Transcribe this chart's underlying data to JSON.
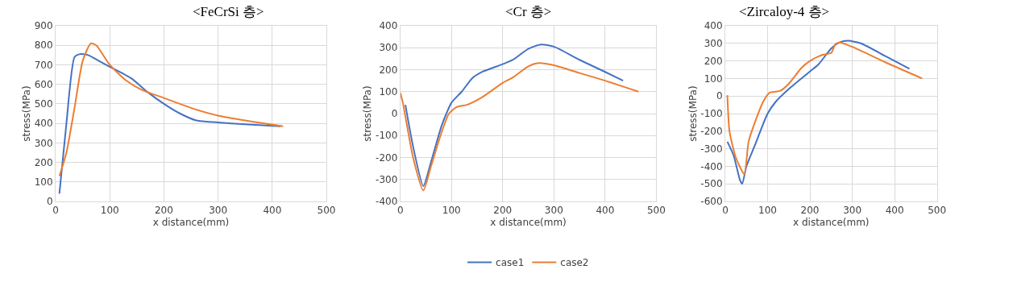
{
  "chart_data": [
    {
      "type": "line",
      "title": "<FeCrSi 층>",
      "xlabel": "x distance(mm)",
      "ylabel": "stress(MPa)",
      "xlim": [
        0,
        500
      ],
      "xticks": [
        0,
        100,
        200,
        300,
        400,
        500
      ],
      "ylim": [
        0,
        900
      ],
      "yticks": [
        0,
        100,
        200,
        300,
        400,
        500,
        600,
        700,
        800,
        900
      ],
      "grid": true,
      "legend": false,
      "series": [
        {
          "color": "#4472c4",
          "x": [
            7,
            20,
            35,
            45,
            60,
            80,
            100,
            140,
            170,
            200,
            230,
            260,
            300,
            350,
            415
          ],
          "values": [
            40,
            400,
            740,
            755,
            750,
            720,
            690,
            630,
            560,
            500,
            450,
            415,
            405,
            395,
            385
          ]
        },
        {
          "color": "#ed7d31",
          "x": [
            7,
            20,
            35,
            50,
            65,
            75,
            100,
            130,
            160,
            200,
            260,
            300,
            350,
            420
          ],
          "values": [
            130,
            250,
            480,
            720,
            810,
            800,
            700,
            620,
            570,
            530,
            470,
            440,
            415,
            385
          ]
        }
      ]
    },
    {
      "type": "line",
      "title": "<Cr 층>",
      "xlabel": "x distance(mm)",
      "ylabel": "stress(MPa)",
      "xlim": [
        0,
        500
      ],
      "xticks": [
        0,
        100,
        200,
        300,
        400,
        500
      ],
      "ylim": [
        -400,
        400
      ],
      "yticks": [
        -400,
        -300,
        -200,
        -100,
        0,
        100,
        200,
        300,
        400
      ],
      "grid": true,
      "legend": "bottom",
      "series": [
        {
          "name": "case1",
          "color": "#4472c4",
          "x": [
            10,
            25,
            45,
            60,
            80,
            90,
            100,
            120,
            140,
            160,
            200,
            220,
            250,
            275,
            300,
            350,
            400,
            435
          ],
          "values": [
            40,
            -150,
            -330,
            -220,
            -60,
            0,
            50,
            100,
            160,
            190,
            225,
            245,
            295,
            315,
            305,
            245,
            190,
            150
          ]
        },
        {
          "name": "case2",
          "color": "#ed7d31",
          "x": [
            0,
            5,
            25,
            45,
            60,
            80,
            95,
            110,
            130,
            160,
            200,
            220,
            250,
            270,
            300,
            350,
            400,
            465
          ],
          "values": [
            95,
            50,
            -200,
            -350,
            -240,
            -90,
            0,
            30,
            40,
            75,
            140,
            165,
            215,
            230,
            220,
            185,
            150,
            100
          ]
        }
      ]
    },
    {
      "type": "line",
      "title": "<Zircaloy-4 층>",
      "xlabel": "x distance(mm)",
      "ylabel": "stress(MPa)",
      "xlim": [
        0,
        500
      ],
      "xticks": [
        0,
        100,
        200,
        300,
        400,
        500
      ],
      "ylim": [
        -600,
        400
      ],
      "yticks": [
        -600,
        -500,
        -400,
        -300,
        -200,
        -100,
        0,
        100,
        200,
        300,
        400
      ],
      "grid": true,
      "legend": false,
      "series": [
        {
          "color": "#4472c4",
          "x": [
            5,
            20,
            35,
            40,
            50,
            70,
            100,
            120,
            150,
            200,
            220,
            250,
            270,
            290,
            320,
            380,
            435
          ],
          "values": [
            -260,
            -340,
            -480,
            -500,
            -400,
            -280,
            -100,
            -30,
            40,
            140,
            180,
            270,
            305,
            315,
            300,
            225,
            155
          ]
        },
        {
          "color": "#ed7d31",
          "x": [
            5,
            10,
            25,
            45,
            55,
            70,
            90,
            105,
            120,
            130,
            150,
            180,
            200,
            230,
            250,
            260,
            270,
            300,
            380,
            465
          ],
          "values": [
            5,
            -200,
            -350,
            -445,
            -260,
            -150,
            -30,
            20,
            25,
            30,
            70,
            160,
            200,
            235,
            245,
            295,
            305,
            280,
            190,
            100
          ]
        }
      ]
    }
  ]
}
